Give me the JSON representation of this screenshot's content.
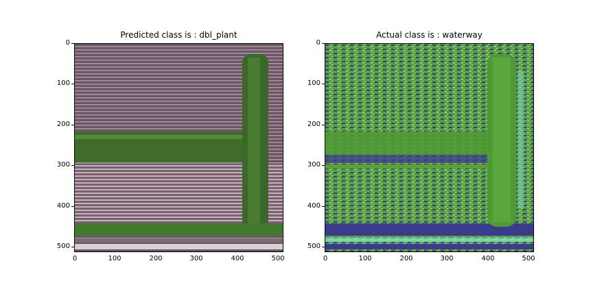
{
  "left_panel": {
    "title": "Predicted class is : dbl_plant",
    "description_colors": {
      "field": "#6e5566",
      "crop": "#3f6b2b"
    }
  },
  "right_panel": {
    "title": "Actual class is : waterway",
    "description_colors": {
      "base": "#5aa03a",
      "dark": "#3b3b8c",
      "cyan": "#7ee0c8",
      "yellow": "#d8d84a"
    }
  },
  "axes": {
    "y_ticks": [
      "0",
      "100",
      "200",
      "300",
      "400",
      "500"
    ],
    "x_ticks": [
      "0",
      "100",
      "200",
      "300",
      "400",
      "500"
    ]
  }
}
